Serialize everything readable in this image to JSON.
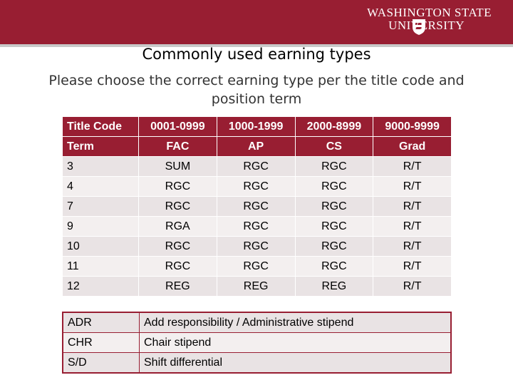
{
  "header": {
    "logo_line1": "WASHINGTON STATE",
    "logo_line2": "UNIVERSITY"
  },
  "title": "Commonly used earning types",
  "subtitle": "Please choose the correct earning type per the title code and position term",
  "table": {
    "header": [
      "Title Code",
      "0001-0999",
      "1000-1999",
      "2000-8999",
      "9000-9999"
    ],
    "rows": [
      [
        "Term",
        "FAC",
        "AP",
        "CS",
        "Grad"
      ],
      [
        "3",
        "SUM",
        "RGC",
        "RGC",
        "R/T"
      ],
      [
        "4",
        "RGC",
        "RGC",
        "RGC",
        "R/T"
      ],
      [
        "7",
        "RGC",
        "RGC",
        "RGC",
        "R/T"
      ],
      [
        "9",
        "RGA",
        "RGC",
        "RGC",
        "R/T"
      ],
      [
        "10",
        "RGC",
        "RGC",
        "RGC",
        "R/T"
      ],
      [
        "11",
        "RGC",
        "RGC",
        "RGC",
        "R/T"
      ],
      [
        "12",
        "REG",
        "REG",
        "REG",
        "R/T"
      ]
    ]
  },
  "legend": {
    "rows": [
      [
        "ADR",
        "Add responsibility / Administrative stipend"
      ],
      [
        "CHR",
        "Chair stipend"
      ],
      [
        "S/D",
        "Shift differential"
      ]
    ]
  }
}
